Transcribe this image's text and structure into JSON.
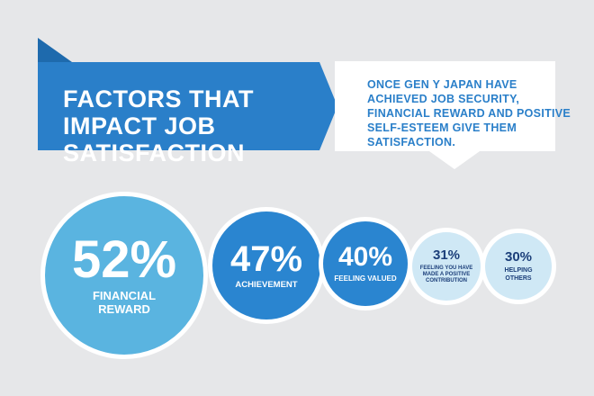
{
  "title": "FACTORS THAT IMPACT JOB SATISFACTION",
  "info_text": "ONCE GEN Y JAPAN HAVE ACHIEVED JOB SECURITY, FINANCIAL REWARD AND POSITIVE SELF-ESTEEM GIVE THEM SATISFACTION.",
  "colors": {
    "background": "#e6e7e9",
    "banner": "#2a7fc9",
    "banner_tail": "#1e6aad",
    "info_box": "#ffffff",
    "info_text": "#2a7fc9",
    "circle_light": "#5ab4e0",
    "circle_mid": "#2a85d0",
    "circle_pale": "#cfe8f5",
    "text_dark": "#1c3f7a"
  },
  "chart_data": {
    "type": "bubble",
    "unit": "%",
    "categories": [
      "FINANCIAL REWARD",
      "ACHIEVEMENT",
      "FEELING VALUED",
      "FEELING YOU HAVE MADE A POSITIVE CONTRIBUTION",
      "HELPING OTHERS"
    ],
    "values": [
      52,
      47,
      40,
      31,
      30
    ],
    "items": [
      {
        "value": 52,
        "display": "52%",
        "label": "FINANCIAL REWARD"
      },
      {
        "value": 47,
        "display": "47%",
        "label": "ACHIEVEMENT"
      },
      {
        "value": 40,
        "display": "40%",
        "label": "FEELING VALUED"
      },
      {
        "value": 31,
        "display": "31%",
        "label": "FEELING YOU HAVE MADE A POSITIVE CONTRIBUTION"
      },
      {
        "value": 30,
        "display": "30%",
        "label": "HELPING OTHERS"
      }
    ]
  }
}
